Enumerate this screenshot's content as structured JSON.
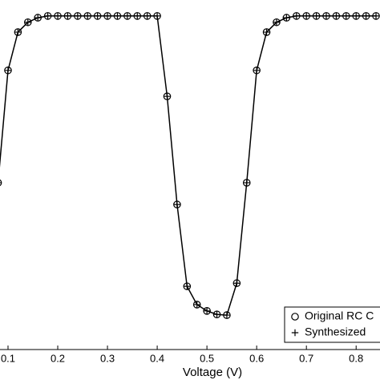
{
  "chart_data": {
    "type": "line",
    "x_label": "Voltage (V)",
    "x": [
      0.08,
      0.1,
      0.12,
      0.14,
      0.16,
      0.18,
      0.2,
      0.22,
      0.24,
      0.26,
      0.28,
      0.3,
      0.32,
      0.34,
      0.36,
      0.38,
      0.4,
      0.42,
      0.44,
      0.46,
      0.48,
      0.5,
      0.52,
      0.54,
      0.56,
      0.58,
      0.6,
      0.62,
      0.64,
      0.66,
      0.68,
      0.7,
      0.72,
      0.74,
      0.76,
      0.78,
      0.8,
      0.82,
      0.84
    ],
    "series": [
      {
        "name": "Original RC C",
        "marker": "circle",
        "color": "#000000",
        "values": [
          0.475,
          0.795,
          0.904,
          0.932,
          0.945,
          0.95,
          0.95,
          0.95,
          0.95,
          0.95,
          0.95,
          0.95,
          0.95,
          0.95,
          0.95,
          0.95,
          0.95,
          0.721,
          0.413,
          0.18,
          0.128,
          0.11,
          0.1,
          0.098,
          0.189,
          0.475,
          0.795,
          0.904,
          0.932,
          0.945,
          0.95,
          0.95,
          0.95,
          0.95,
          0.95,
          0.95,
          0.95,
          0.95,
          0.95
        ]
      },
      {
        "name": "Synthesized",
        "marker": "plus",
        "line": true,
        "color": "#000000",
        "values": [
          0.475,
          0.795,
          0.904,
          0.932,
          0.945,
          0.95,
          0.95,
          0.95,
          0.95,
          0.95,
          0.95,
          0.95,
          0.95,
          0.95,
          0.95,
          0.95,
          0.95,
          0.721,
          0.413,
          0.18,
          0.128,
          0.11,
          0.1,
          0.098,
          0.189,
          0.475,
          0.795,
          0.904,
          0.932,
          0.945,
          0.95,
          0.95,
          0.95,
          0.95,
          0.95,
          0.95,
          0.95,
          0.95,
          0.95
        ]
      }
    ],
    "xlim": [
      0.0839,
      0.848
    ],
    "ylim": [
      0,
      1
    ],
    "xticks": [
      0.1,
      0.2,
      0.3,
      0.4,
      0.5,
      0.6,
      0.7,
      0.8
    ]
  }
}
